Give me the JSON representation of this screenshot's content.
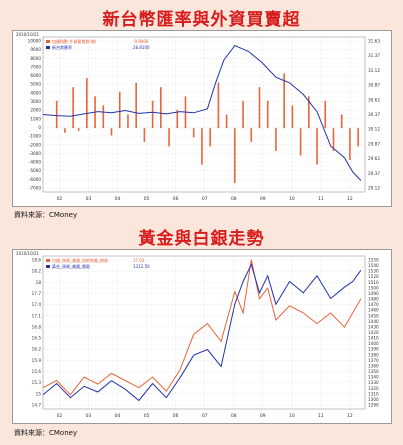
{
  "page": {
    "title1": "新台幣匯率與外資買賣超",
    "title2": "黃金與白銀走勢",
    "source1": "資料來源：CMoney",
    "source2": "資料來源：CMoney"
  },
  "colors": {
    "orange": "#e8643c",
    "blue": "#2233aa",
    "title": "#d81c1c"
  },
  "chart_data": [
    {
      "type": "bar",
      "date_label": "2010/10/21",
      "legend": [
        {
          "label": "加權指數 外資買賣超(億)",
          "value": "-9.8900",
          "color": "#e8643c"
        },
        {
          "label": "新台幣匯率",
          "value": "28.8100",
          "color": "#2233aa"
        }
      ],
      "x_ticks": [
        "02",
        "03",
        "04",
        "05",
        "06",
        "07",
        "08",
        "09",
        "10",
        "11",
        "12"
      ],
      "y_left_ticks": [
        "10000",
        "9000",
        "8000",
        "7000",
        "6000",
        "5000",
        "4000",
        "3000",
        "2000",
        "1000",
        "0",
        "-1000",
        "-2000",
        "-3000",
        "-4000",
        "-5000",
        "-6000",
        "-7000"
      ],
      "y_right_ticks": [
        "31.63",
        "31.37",
        "31.12",
        "30.87",
        "30.62",
        "30.37",
        "30.12",
        "29.87",
        "29.62",
        "29.37",
        "29.12"
      ],
      "ylim_left": [
        -7000,
        10000
      ],
      "ylim_right": [
        29.0,
        31.7
      ],
      "x_range": [
        1.0,
        12.75
      ],
      "series": [
        {
          "name": "加權指數 外資買賣超(億)",
          "kind": "bar",
          "color": "#e8643c",
          "x": [
            1.5,
            1.8,
            2.1,
            2.3,
            2.6,
            2.9,
            3.2,
            3.5,
            3.8,
            4.1,
            4.4,
            4.7,
            5.0,
            5.3,
            5.6,
            5.9,
            6.2,
            6.5,
            6.8,
            7.1,
            7.4,
            7.7,
            8.0,
            8.3,
            8.6,
            8.9,
            9.2,
            9.5,
            9.8,
            10.1,
            10.4,
            10.7,
            11.0,
            11.3,
            11.6,
            11.9,
            12.2,
            12.5
          ],
          "values": [
            3000,
            -500,
            4500,
            -300,
            5500,
            3500,
            2500,
            -800,
            4000,
            1500,
            5000,
            -1500,
            3000,
            4500,
            -2000,
            2000,
            3500,
            -1000,
            -4000,
            -2000,
            5000,
            1500,
            -6000,
            3000,
            -1500,
            4500,
            3000,
            -2500,
            6000,
            2500,
            -3000,
            3500,
            -4000,
            3000,
            -2500,
            1500,
            -3500,
            -2000
          ]
        },
        {
          "name": "新台幣匯率",
          "kind": "line",
          "color": "#2233aa",
          "x": [
            1.0,
            1.5,
            2.0,
            2.5,
            3.0,
            3.5,
            4.0,
            4.5,
            5.0,
            5.5,
            6.0,
            6.5,
            7.0,
            7.3,
            7.6,
            8.0,
            8.5,
            9.0,
            9.5,
            10.0,
            10.5,
            11.0,
            11.5,
            12.0,
            12.3,
            12.6
          ],
          "values": [
            30.35,
            30.33,
            30.32,
            30.36,
            30.4,
            30.38,
            30.42,
            30.37,
            30.39,
            30.36,
            30.4,
            30.38,
            30.45,
            30.9,
            31.3,
            31.55,
            31.45,
            31.25,
            31.0,
            30.9,
            30.7,
            30.4,
            29.8,
            29.6,
            29.35,
            29.2
          ]
        }
      ]
    },
    {
      "type": "line",
      "date_label": "2010/10/21",
      "legend": [
        {
          "label": "白銀_現貨_美國_紐約商業_期貨",
          "value": "17.03",
          "color": "#e8643c"
        },
        {
          "label": "黃金_現貨_美國_倫敦",
          "value": "1312.50",
          "color": "#2233aa"
        }
      ],
      "x_ticks": [
        "02",
        "03",
        "04",
        "05",
        "06",
        "07",
        "08",
        "09",
        "10",
        "11",
        "12"
      ],
      "y_left_ticks": [
        "18.6",
        "18.2",
        "18",
        "17.7",
        "17.4",
        "17.1",
        "16.8",
        "16.5",
        "16.2",
        "15.9",
        "15.6",
        "15.3",
        "15",
        "14.7"
      ],
      "y_right_ticks": [
        "1550",
        "1540",
        "1530",
        "1520",
        "1510",
        "1500",
        "1490",
        "1480",
        "1470",
        "1460",
        "1450",
        "1440",
        "1430",
        "1420",
        "1410",
        "1400",
        "1390",
        "1380",
        "1370",
        "1360",
        "1350",
        "1340",
        "1330",
        "1320",
        "1310",
        "1300",
        "1290"
      ],
      "ylim_left": [
        14.5,
        18.8
      ],
      "ylim_right": [
        1285,
        1555
      ],
      "x_range": [
        1.0,
        12.75
      ],
      "series": [
        {
          "name": "白銀_現貨_美國_紐約商業_期貨",
          "color": "#e8643c",
          "x": [
            1.0,
            1.5,
            2.0,
            2.5,
            3.0,
            3.5,
            4.0,
            4.5,
            5.0,
            5.5,
            6.0,
            6.5,
            7.0,
            7.5,
            8.0,
            8.3,
            8.6,
            8.9,
            9.2,
            9.5,
            10.0,
            10.5,
            11.0,
            11.5,
            12.0,
            12.3,
            12.6
          ],
          "values": [
            15.1,
            15.3,
            14.9,
            15.4,
            15.2,
            15.5,
            15.3,
            15.1,
            15.4,
            15.0,
            15.6,
            16.6,
            16.9,
            16.4,
            17.8,
            17.2,
            18.7,
            17.6,
            17.9,
            17.0,
            17.4,
            17.2,
            16.9,
            17.2,
            16.8,
            17.2,
            17.6
          ]
        },
        {
          "name": "黃金_現貨_美國_倫敦",
          "color": "#2233aa",
          "x": [
            1.0,
            1.5,
            2.0,
            2.5,
            3.0,
            3.5,
            4.0,
            4.5,
            5.0,
            5.5,
            6.0,
            6.5,
            7.0,
            7.5,
            8.0,
            8.3,
            8.6,
            8.9,
            9.2,
            9.5,
            10.0,
            10.5,
            11.0,
            11.5,
            12.0,
            12.3,
            12.6
          ],
          "values": [
            1310,
            1330,
            1305,
            1325,
            1315,
            1335,
            1320,
            1300,
            1330,
            1305,
            1340,
            1380,
            1390,
            1360,
            1470,
            1510,
            1540,
            1490,
            1520,
            1470,
            1510,
            1490,
            1520,
            1480,
            1500,
            1510,
            1530
          ]
        }
      ]
    }
  ]
}
